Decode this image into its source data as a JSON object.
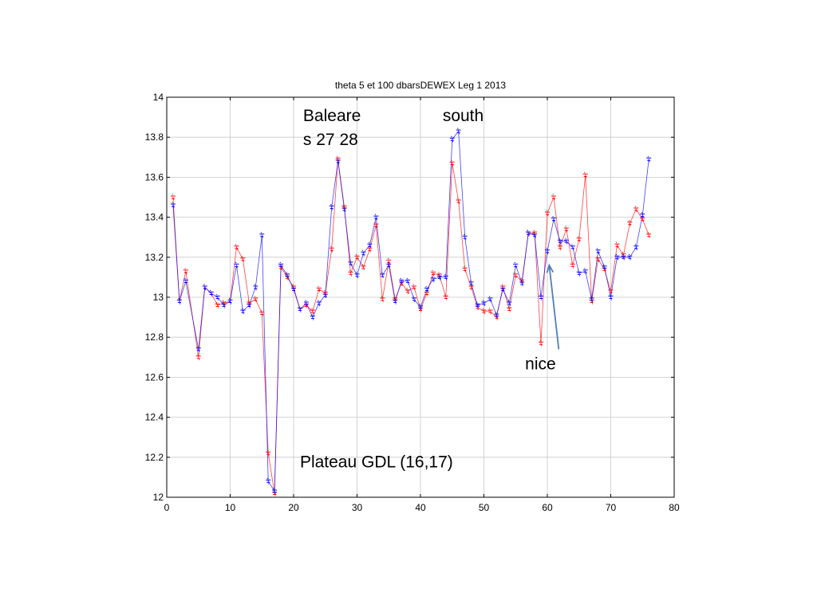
{
  "chart_data": {
    "type": "line",
    "title": "theta 5 et 100 dbarsDEWEX Leg 1 2013",
    "xlabel": "",
    "ylabel": "",
    "xlim": [
      0,
      80
    ],
    "ylim": [
      12,
      14
    ],
    "xticks": [
      "0",
      "10",
      "20",
      "30",
      "40",
      "50",
      "60",
      "70",
      "80"
    ],
    "yticks": [
      "12",
      "12.2",
      "12.4",
      "12.6",
      "12.8",
      "13",
      "13.2",
      "13.4",
      "13.6",
      "13.8",
      "14"
    ],
    "grid": true,
    "x": [
      1,
      2,
      3,
      5,
      6,
      7,
      8,
      9,
      10,
      11,
      12,
      13,
      14,
      15,
      16,
      17,
      18,
      19,
      20,
      21,
      22,
      23,
      24,
      25,
      26,
      27,
      28,
      29,
      30,
      31,
      32,
      33,
      34,
      35,
      36,
      37,
      38,
      39,
      40,
      41,
      42,
      43,
      44,
      45,
      46,
      47,
      48,
      49,
      50,
      51,
      52,
      53,
      54,
      55,
      56,
      57,
      58,
      59,
      60,
      61,
      62,
      63,
      64,
      65,
      66,
      67,
      68,
      69,
      70,
      71,
      72,
      73,
      74,
      75,
      76
    ],
    "series": [
      {
        "color": "#ff0000",
        "values": [
          13.5,
          12.98,
          13.13,
          12.7,
          13.05,
          13.02,
          12.96,
          12.97,
          12.98,
          13.25,
          13.19,
          12.97,
          12.99,
          12.92,
          12.22,
          12.02,
          13.15,
          13.1,
          13.05,
          12.94,
          12.96,
          12.93,
          13.04,
          13.02,
          13.24,
          13.69,
          13.45,
          13.12,
          13.2,
          13.15,
          13.24,
          13.36,
          12.99,
          13.18,
          12.99,
          13.07,
          13.03,
          13.05,
          12.94,
          13.02,
          13.12,
          13.11,
          13.0,
          13.67,
          13.48,
          13.14,
          13.05,
          12.95,
          12.93,
          12.93,
          12.9,
          13.05,
          12.94,
          13.11,
          13.08,
          13.32,
          13.32,
          12.77,
          13.42,
          13.5,
          13.25,
          13.34,
          13.16,
          13.29,
          13.61,
          12.98,
          13.19,
          13.14,
          13.03,
          13.26,
          13.21,
          13.37,
          13.44,
          13.39,
          13.31
        ]
      },
      {
        "color": "#0000ff",
        "values": [
          13.46,
          12.98,
          13.08,
          12.74,
          13.05,
          13.02,
          13.0,
          12.96,
          12.98,
          13.16,
          12.93,
          12.96,
          13.05,
          13.31,
          12.08,
          12.03,
          13.16,
          13.11,
          13.04,
          12.94,
          12.97,
          12.9,
          12.97,
          13.01,
          13.45,
          13.68,
          13.44,
          13.17,
          13.11,
          13.22,
          13.26,
          13.4,
          13.11,
          13.16,
          12.98,
          13.08,
          13.08,
          12.99,
          12.95,
          13.04,
          13.09,
          13.1,
          13.1,
          13.79,
          13.83,
          13.3,
          13.07,
          12.96,
          12.97,
          12.99,
          12.91,
          13.04,
          12.97,
          13.16,
          13.07,
          13.32,
          13.31,
          13.0,
          13.23,
          13.39,
          13.28,
          13.28,
          13.25,
          13.12,
          13.13,
          12.99,
          13.23,
          13.15,
          13.0,
          13.2,
          13.2,
          13.2,
          13.25,
          13.41,
          13.69
        ]
      }
    ],
    "annotations": [
      {
        "text": "Baleare",
        "x": 21.5,
        "y": 13.88
      },
      {
        "text": "s 27 28",
        "x": 21.5,
        "y": 13.76
      },
      {
        "text": "south",
        "x": 43.5,
        "y": 13.88
      },
      {
        "text": "nice",
        "x": 56.5,
        "y": 12.64
      },
      {
        "text": "Plateau GDL (16,17)",
        "x": 21,
        "y": 12.15
      }
    ],
    "arrow": {
      "color": "#4f7fb8",
      "from": [
        61.8,
        12.74
      ],
      "to": [
        60.3,
        13.16
      ]
    }
  }
}
